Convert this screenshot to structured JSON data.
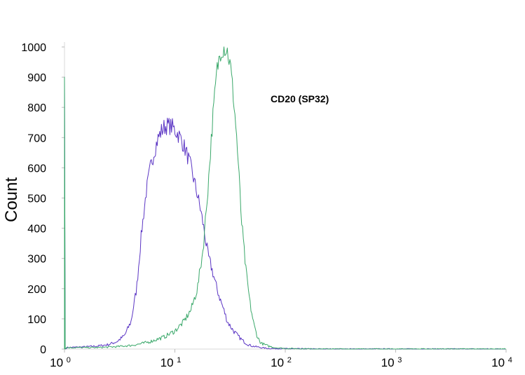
{
  "chart_data": {
    "type": "line",
    "title": "",
    "xlabel": "",
    "ylabel": "Count",
    "x_scale": "log10",
    "xlim": [
      1,
      10000
    ],
    "ylim": [
      0,
      1000
    ],
    "yticks": [
      0,
      100,
      200,
      300,
      400,
      500,
      600,
      700,
      800,
      900,
      1000
    ],
    "xticks": [
      {
        "base": "10",
        "exp": "0"
      },
      {
        "base": "10",
        "exp": "1"
      },
      {
        "base": "10",
        "exp": "2"
      },
      {
        "base": "10",
        "exp": "3"
      },
      {
        "base": "10",
        "exp": "4"
      }
    ],
    "annotation": "CD20 (SP32)",
    "grid": false,
    "series": [
      {
        "color": "#5b35c4",
        "x": [
          1,
          1.05,
          1.5,
          2,
          2.5,
          3,
          3.5,
          4,
          4.5,
          5,
          5.5,
          6,
          6.5,
          7,
          7.5,
          8,
          8.5,
          9,
          9.5,
          10,
          11,
          12,
          13,
          14,
          15,
          16,
          17,
          18,
          19,
          20,
          22,
          24,
          26,
          28,
          30,
          34,
          38,
          42,
          46,
          50,
          60,
          70,
          100,
          200,
          1000,
          10000
        ],
        "y": [
          900,
          5,
          7,
          10,
          15,
          25,
          45,
          90,
          200,
          390,
          520,
          600,
          655,
          695,
          720,
          735,
          740,
          738,
          735,
          725,
          705,
          675,
          640,
          600,
          555,
          510,
          465,
          415,
          360,
          310,
          255,
          200,
          160,
          125,
          90,
          60,
          40,
          25,
          15,
          10,
          5,
          2,
          1,
          0,
          0,
          0
        ]
      },
      {
        "color": "#3aa86a",
        "x": [
          1,
          1.05,
          2,
          3,
          4,
          5,
          6,
          8,
          10,
          12,
          14,
          16,
          18,
          20,
          22,
          24,
          26,
          28,
          30,
          32,
          34,
          36,
          38,
          40,
          44,
          48,
          52,
          56,
          60,
          70,
          80,
          100,
          200,
          1000,
          10000
        ],
        "y": [
          900,
          5,
          5,
          8,
          12,
          18,
          25,
          40,
          60,
          90,
          130,
          200,
          330,
          540,
          760,
          920,
          990,
          1000,
          985,
          930,
          830,
          720,
          580,
          430,
          260,
          150,
          80,
          40,
          20,
          10,
          5,
          2,
          0,
          0,
          0
        ]
      }
    ]
  }
}
